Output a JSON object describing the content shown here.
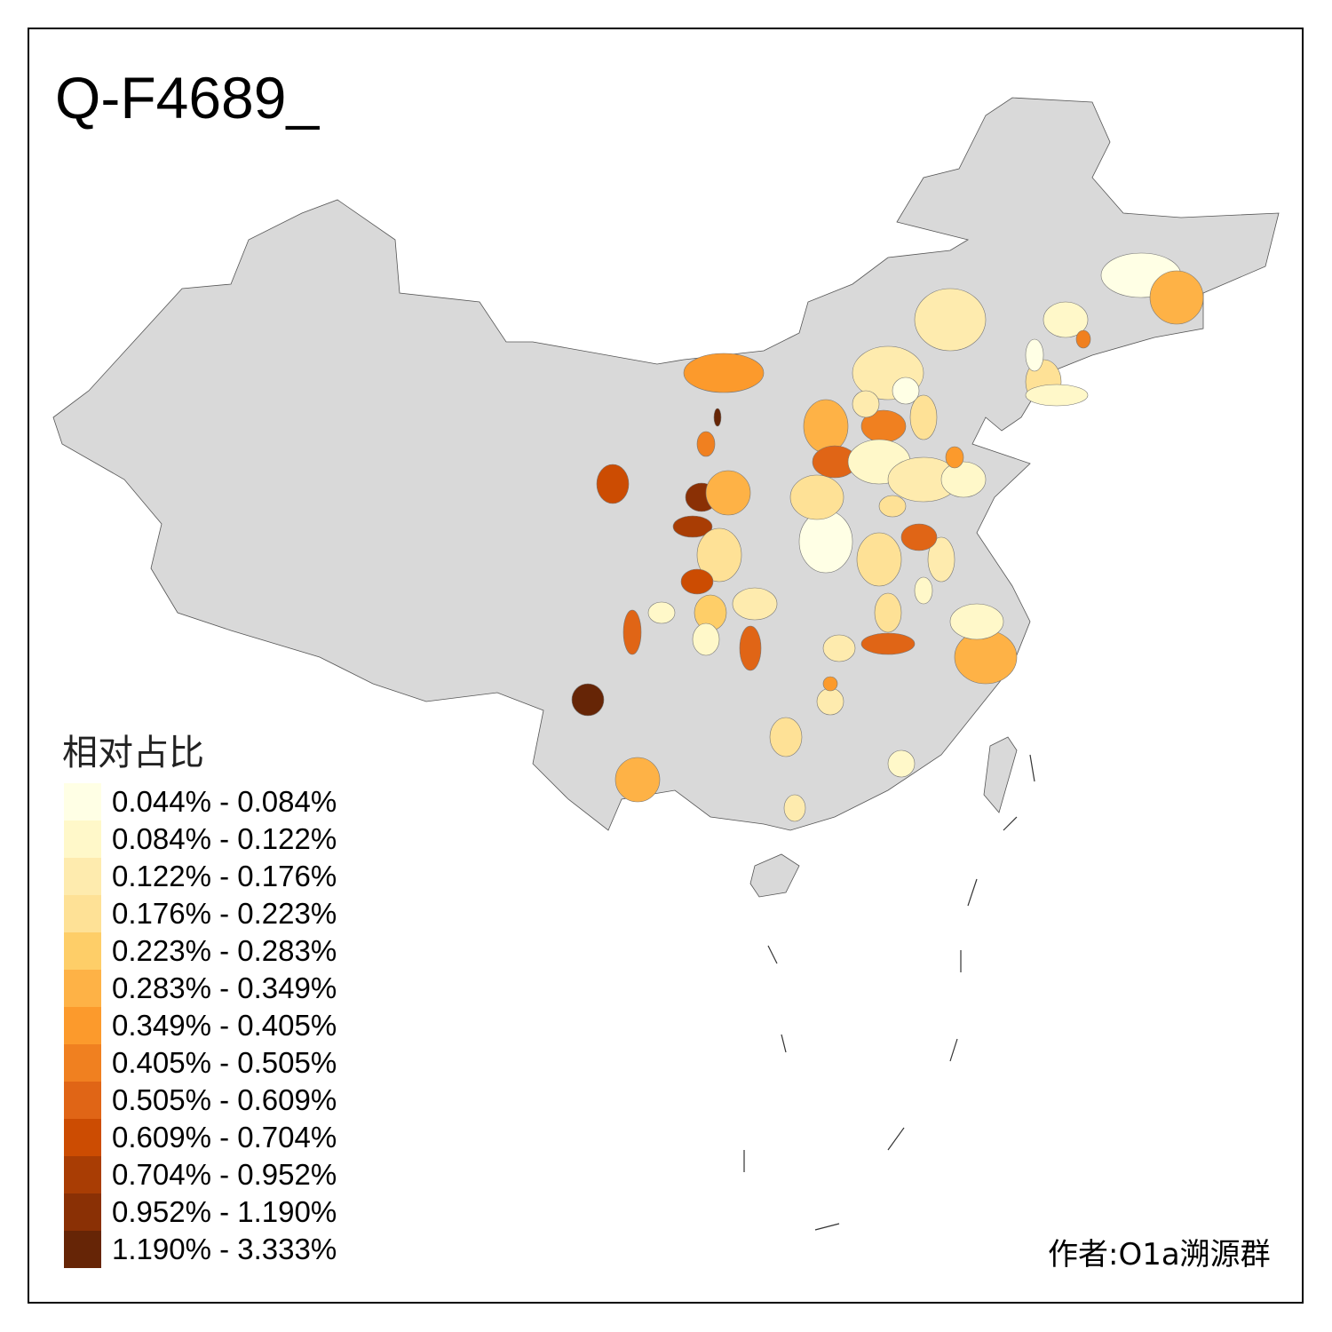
{
  "title": "Q-F4689_",
  "legend": {
    "title": "相对占比",
    "classes": [
      {
        "label": "0.044% - 0.084%",
        "color": "#FFFFE5"
      },
      {
        "label": "0.084% - 0.122%",
        "color": "#FFF8C9"
      },
      {
        "label": "0.122% - 0.176%",
        "color": "#FEEBAE"
      },
      {
        "label": "0.176% - 0.223%",
        "color": "#FEE196"
      },
      {
        "label": "0.223% - 0.283%",
        "color": "#FECE68"
      },
      {
        "label": "0.283% - 0.349%",
        "color": "#FEB246"
      },
      {
        "label": "0.349% - 0.405%",
        "color": "#FC9A2C"
      },
      {
        "label": "0.405% - 0.505%",
        "color": "#F08020"
      },
      {
        "label": "0.505% - 0.609%",
        "color": "#E06516"
      },
      {
        "label": "0.609% - 0.704%",
        "color": "#CC4C02"
      },
      {
        "label": "0.704% - 0.952%",
        "color": "#A93D04"
      },
      {
        "label": "0.952% - 1.190%",
        "color": "#8A3005"
      },
      {
        "label": "1.190% - 3.333%",
        "color": "#662506"
      }
    ]
  },
  "base_color": "#D9D9D9",
  "credit": "作者:O1a溯源群"
}
